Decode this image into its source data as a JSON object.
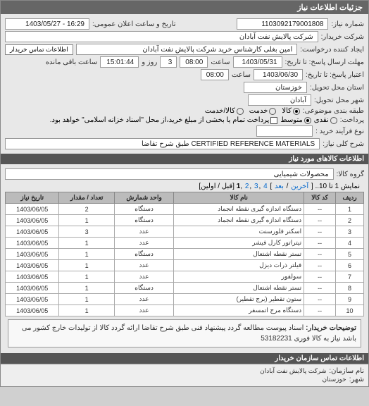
{
  "header": {
    "title": "جزئیات اطلاعات نیاز"
  },
  "fields": {
    "req_no_label": "شماره نیاز:",
    "req_no": "1103092179001808",
    "announce_label": "تاریخ و ساعت اعلان عمومی:",
    "announce_val": "16:29 - 1403/05/27",
    "buyer_label": "شرکت خریدار:",
    "buyer_val": "شرکت پالایش نفت آبادان",
    "creator_label": "ایجاد کننده درخواست:",
    "creator_val": "امین بغلی کارشناس خرید شرکت پالایش نفت آبادان",
    "contact_btn": "اطلاعات تماس خریدار",
    "deadline_send_label": "مهلت ارسال پاسخ: تا تاریخ:",
    "deadline_date": "1403/05/31",
    "time_lbl": "ساعت",
    "deadline_time": "08:00",
    "days_lbl": "روز و",
    "days_val": "3",
    "remain_lbl": "ساعت باقی مانده",
    "remain_val": "15:01:44",
    "valid_label": "اعتبار پاسخ: تا تاریخ:",
    "valid_date": "1403/06/30",
    "valid_time": "08:00",
    "province_label": "استان محل تحویل:",
    "province_val": "خوزستان",
    "city_label": "شهر محل تحویل:",
    "city_val": "آبادان",
    "pack_label": "طبقه بندی موضوعی:",
    "pack_opts": {
      "goods": "کالا",
      "service": "خدمت",
      "both": "کالا/خدمت"
    },
    "pay_label": "پرداخت:",
    "pay_opts": {
      "cash": "نقدی",
      "mid": "متوسط",
      "tick": "پرداخت تمام یا بخشی از مبلغ خرید،از محل \"اسناد خزانه اسلامی\" خواهد بود."
    },
    "buy_type_label": "نوع فرآیند خرید :",
    "need_title_label": "شرح کلی نیاز:",
    "need_title_val": "CERTIFIED REFERENCE MATERIALS طبق شرح تقاضا"
  },
  "goods": {
    "header": "اطلاعات کالاهای مورد نیاز",
    "group_label": "گروه کالا:",
    "group_val": "محصولات شیمیایی",
    "pager": {
      "prefix": "نمایش 1 تا 10..",
      "links": [
        "آخرین",
        "بعد",
        "4",
        "3",
        "2",
        "1"
      ],
      "suffix": "[قبل / اولین]"
    },
    "columns": [
      "ردیف",
      "کد کالا",
      "نام کالا",
      "واحد شمارش",
      "تعداد / مقدار",
      "تاریخ نیاز"
    ],
    "rows": [
      [
        "1",
        "--",
        "دستگاه اندازه گیری نقطه انجماد",
        "دستگاه",
        "2",
        "1403/06/05"
      ],
      [
        "2",
        "--",
        "دستگاه اندازه گیری نقطه انجماد",
        "دستگاه",
        "1",
        "1403/06/05"
      ],
      [
        "3",
        "--",
        "اسکنر فلورسنت",
        "عدد",
        "3",
        "1403/06/05"
      ],
      [
        "4",
        "--",
        "تیتراتور کارل فیشر",
        "عدد",
        "1",
        "1403/06/05"
      ],
      [
        "5",
        "--",
        "تستر نقطه اشتعال",
        "دستگاه",
        "1",
        "1403/06/05"
      ],
      [
        "6",
        "--",
        "فیلتر ذرات دیزل",
        "عدد",
        "1",
        "1403/06/05"
      ],
      [
        "7",
        "--",
        "سولفور",
        "عدد",
        "1",
        "1403/06/05"
      ],
      [
        "8",
        "--",
        "تستر نقطه اشتعال",
        "دستگاه",
        "1",
        "1403/06/05"
      ],
      [
        "9",
        "--",
        "ستون تقطیر (برج تقطیر)",
        "عدد",
        "1",
        "1403/06/05"
      ],
      [
        "10",
        "--",
        "دستگاه مرج اتمسفر",
        "عدد",
        "1",
        "1403/06/05"
      ]
    ]
  },
  "note": {
    "label": "توضیحات خریدار:",
    "text": "اسناد پیوست مطالعه گردد پیشنهاد فنی طبق شرح تقاضا ارائه گردد کالا از تولیدات خارج کشور می باشد نیاز به کالا فوری 53182231"
  },
  "footer": {
    "header": "اطلاعات تماس سازمان خریدار",
    "org_label": "نام سازمان:",
    "org_val": "شرکت پالایش نفت آبادان",
    "city_label": "شهر:",
    "city_val": "خوزستان"
  },
  "colors": {
    "header_bg": "#666666",
    "panel_bg": "#e8e8e8",
    "th_bg": "#bbbbbb",
    "border": "#888888"
  }
}
